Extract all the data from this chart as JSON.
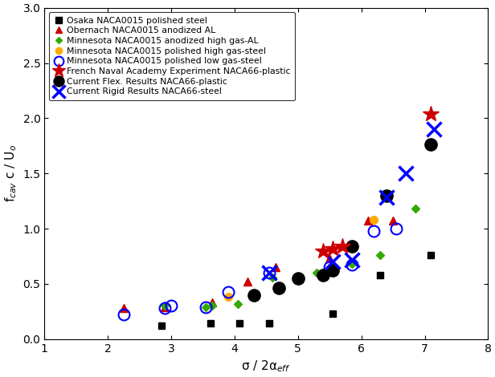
{
  "xlim": [
    1,
    8
  ],
  "ylim": [
    0,
    3
  ],
  "xticks": [
    1,
    2,
    3,
    4,
    5,
    6,
    7,
    8
  ],
  "yticks": [
    0,
    0.5,
    1.0,
    1.5,
    2.0,
    2.5,
    3.0
  ],
  "osaka": {
    "x": [
      2.85,
      3.62,
      4.08,
      4.55,
      5.55,
      6.3,
      7.1
    ],
    "y": [
      0.12,
      0.14,
      0.14,
      0.14,
      0.23,
      0.58,
      0.76
    ],
    "color": "black",
    "marker": "s",
    "label": "Osaka NACA0015 polished steel",
    "ms": 6
  },
  "obernach": {
    "x": [
      2.25,
      2.9,
      3.65,
      4.2,
      4.65,
      5.5,
      5.8,
      6.1,
      6.5
    ],
    "y": [
      0.28,
      0.29,
      0.33,
      0.52,
      0.65,
      0.73,
      0.84,
      1.07,
      1.07
    ],
    "color": "#cc0000",
    "marker": "^",
    "label": "Obernach NACA0015 anodized AL",
    "ms": 7
  },
  "minnesota_diamond": {
    "x": [
      2.9,
      3.55,
      3.65,
      4.05,
      4.6,
      5.3,
      5.55,
      5.85,
      6.3,
      6.85
    ],
    "y": [
      0.3,
      0.29,
      0.3,
      0.32,
      0.56,
      0.6,
      0.65,
      0.68,
      0.76,
      1.18
    ],
    "color": "#33aa00",
    "marker": "D",
    "label": "Minnesota NACA0015 anodized high gas-AL",
    "ms": 5
  },
  "minnesota_orange": {
    "x": [
      3.9,
      6.2
    ],
    "y": [
      0.38,
      1.08
    ],
    "color": "#ffaa00",
    "marker": "o",
    "label": "Minnesota NACA0015 polished high gas-steel",
    "ms": 7
  },
  "minnesota_open": {
    "x": [
      2.25,
      2.9,
      3.0,
      3.55,
      3.9,
      4.55,
      5.5,
      5.85,
      6.2,
      6.55
    ],
    "y": [
      0.22,
      0.28,
      0.3,
      0.29,
      0.43,
      0.6,
      0.65,
      0.67,
      0.98,
      1.0
    ],
    "color": "blue",
    "marker": "o",
    "label": "Minnesota NACA0015 polished low gas-steel",
    "ms": 10,
    "lw": 1.5
  },
  "french_naval": {
    "x": [
      5.4,
      5.55,
      5.7,
      7.1
    ],
    "y": [
      0.8,
      0.82,
      0.84,
      2.04
    ],
    "color": "#cc0000",
    "marker": "*",
    "label": "French Naval Academy Experiment NACA66-plastic",
    "ms": 15
  },
  "current_flex": {
    "x": [
      4.3,
      4.7,
      5.0,
      5.4,
      5.55,
      5.85,
      6.4,
      7.1
    ],
    "y": [
      0.4,
      0.46,
      0.55,
      0.58,
      0.62,
      0.84,
      1.3,
      1.76
    ],
    "color": "black",
    "marker": "o",
    "label": "Current Flex. Results NACA66-plastic",
    "ms": 11
  },
  "current_rigid": {
    "x": [
      4.55,
      5.55,
      5.85,
      6.4,
      6.7,
      7.15
    ],
    "y": [
      0.6,
      0.7,
      0.72,
      1.28,
      1.5,
      1.9
    ],
    "color": "blue",
    "marker": "x",
    "label": "Current Rigid Results NACA66-steel",
    "ms": 13,
    "lw": 2.5
  },
  "legend_fontsize": 7.8,
  "tick_fontsize": 10,
  "label_fontsize": 11,
  "background_color": "white"
}
